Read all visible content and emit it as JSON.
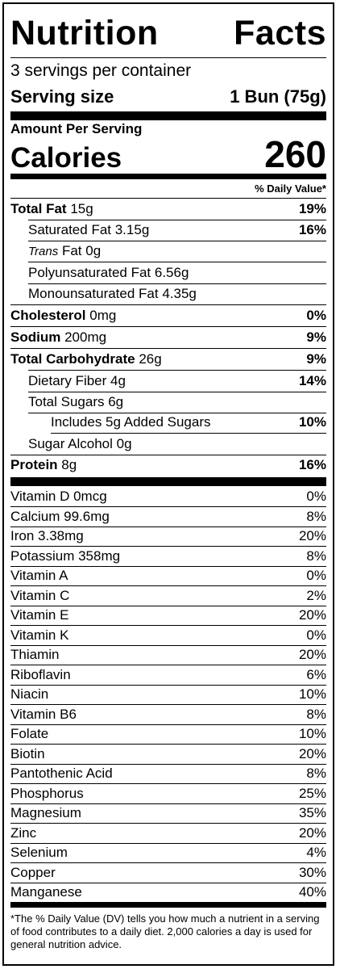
{
  "title": "Nutrition Facts",
  "servings_per_container": "3 servings per container",
  "serving_size_label": "Serving size",
  "serving_size_value": "1 Bun (75g)",
  "amount_per_serving": "Amount Per Serving",
  "calories_label": "Calories",
  "calories_value": "260",
  "dv_header": "% Daily Value*",
  "nutrients": {
    "total_fat": {
      "label": "Total Fat",
      "amount": "15g",
      "dv": "19%"
    },
    "saturated_fat": {
      "label": "Saturated Fat 3.15g",
      "dv": "16%"
    },
    "trans_fat": {
      "label_italic": "Trans",
      "label": "Fat 0g"
    },
    "polyunsaturated_fat": {
      "label": "Polyunsaturated Fat 6.56g"
    },
    "monounsaturated_fat": {
      "label": "Monounsaturated Fat 4.35g"
    },
    "cholesterol": {
      "label": "Cholesterol",
      "amount": "0mg",
      "dv": "0%"
    },
    "sodium": {
      "label": "Sodium",
      "amount": "200mg",
      "dv": "9%"
    },
    "total_carbohydrate": {
      "label": "Total Carbohydrate",
      "amount": "26g",
      "dv": "9%"
    },
    "dietary_fiber": {
      "label": "Dietary Fiber 4g",
      "dv": "14%"
    },
    "total_sugars": {
      "label": "Total Sugars 6g"
    },
    "added_sugars": {
      "label": "Includes 5g Added Sugars",
      "dv": "10%"
    },
    "sugar_alcohol": {
      "label": "Sugar Alcohol 0g"
    },
    "protein": {
      "label": "Protein",
      "amount": "8g",
      "dv": "16%"
    }
  },
  "vitamins": [
    {
      "label": "Vitamin D 0mcg",
      "dv": "0%"
    },
    {
      "label": "Calcium 99.6mg",
      "dv": "8%"
    },
    {
      "label": "Iron 3.38mg",
      "dv": "20%"
    },
    {
      "label": "Potassium 358mg",
      "dv": "8%"
    },
    {
      "label": "Vitamin A",
      "dv": "0%"
    },
    {
      "label": "Vitamin C",
      "dv": "2%"
    },
    {
      "label": "Vitamin E",
      "dv": "20%"
    },
    {
      "label": "Vitamin K",
      "dv": "0%"
    },
    {
      "label": "Thiamin",
      "dv": "20%"
    },
    {
      "label": "Riboflavin",
      "dv": "6%"
    },
    {
      "label": "Niacin",
      "dv": "10%"
    },
    {
      "label": "Vitamin B6",
      "dv": "8%"
    },
    {
      "label": "Folate",
      "dv": "10%"
    },
    {
      "label": "Biotin",
      "dv": "20%"
    },
    {
      "label": "Pantothenic Acid",
      "dv": "8%"
    },
    {
      "label": "Phosphorus",
      "dv": "25%"
    },
    {
      "label": "Magnesium",
      "dv": "35%"
    },
    {
      "label": "Zinc",
      "dv": "20%"
    },
    {
      "label": "Selenium",
      "dv": "4%"
    },
    {
      "label": "Copper",
      "dv": "30%"
    },
    {
      "label": "Manganese",
      "dv": "40%"
    }
  ],
  "footnote": "*The % Daily Value (DV) tells you how much a nutrient in a serving of food contributes to a daily diet. 2,000 calories a day is used for general nutrition advice."
}
